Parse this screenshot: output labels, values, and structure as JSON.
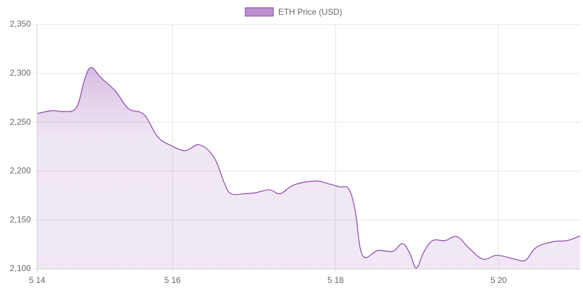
{
  "chart_data": {
    "type": "area",
    "legend": "top",
    "grid": true,
    "x": [
      14.34,
      14.53,
      14.66,
      14.82,
      14.92,
      15.0,
      15.13,
      15.3,
      15.46,
      15.65,
      15.82,
      15.99,
      16.16,
      16.33,
      16.51,
      16.64,
      16.72,
      16.89,
      17.02,
      17.19,
      17.32,
      17.49,
      17.75,
      17.92,
      18.05,
      18.16,
      18.24,
      18.33,
      18.52,
      18.7,
      18.82,
      18.91,
      18.99,
      19.08,
      19.19,
      19.34,
      19.49,
      19.64,
      19.81,
      19.98,
      20.2,
      20.33,
      20.46,
      20.67,
      20.84,
      21.0
    ],
    "series": [
      {
        "name": "ETH Price (USD)",
        "color": "#8e44ad",
        "values": [
          2259,
          2262,
          2261,
          2265,
          2293,
          2306,
          2295,
          2282,
          2264,
          2258,
          2235,
          2226,
          2221,
          2227,
          2214,
          2187,
          2177,
          2177,
          2178,
          2181,
          2177,
          2186,
          2190,
          2187,
          2184,
          2182,
          2160,
          2114,
          2119,
          2118,
          2126,
          2116,
          2101,
          2117,
          2129,
          2129,
          2133,
          2121,
          2110,
          2114,
          2110,
          2109,
          2122,
          2128,
          2129,
          2134
        ]
      }
    ],
    "xlim": [
      14.34,
      21.0
    ],
    "xticks": [
      {
        "value": 14.34,
        "label": "5 14"
      },
      {
        "value": 16,
        "label": "5 16"
      },
      {
        "value": 18,
        "label": "5 18"
      },
      {
        "value": 20,
        "label": "5 20"
      }
    ],
    "ylim": [
      2100,
      2350
    ],
    "yticks": [
      {
        "value": 2100,
        "label": "2,100"
      },
      {
        "value": 2150,
        "label": "2,150"
      },
      {
        "value": 2200,
        "label": "2,200"
      },
      {
        "value": 2250,
        "label": "2,250"
      },
      {
        "value": 2300,
        "label": "2,300"
      },
      {
        "value": 2350,
        "label": "2,350"
      }
    ]
  }
}
